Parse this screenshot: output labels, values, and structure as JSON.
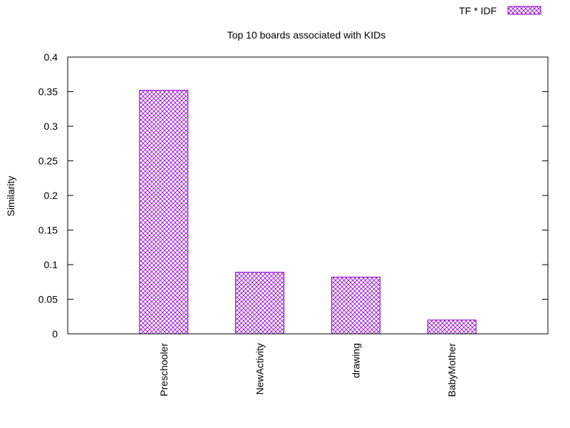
{
  "chart_data": {
    "type": "bar",
    "title": "Top 10 boards associated with KIDs",
    "xlabel": "",
    "ylabel": "Similarity",
    "categories": [
      "Preschooler",
      "NewActivity",
      "drawing",
      "BabyMother"
    ],
    "series": [
      {
        "name": "TF * IDF",
        "values": [
          0.352,
          0.089,
          0.082,
          0.02
        ]
      }
    ],
    "ylim": [
      0,
      0.4
    ],
    "yticks": [
      "0",
      "0.05",
      "0.1",
      "0.15",
      "0.2",
      "0.25",
      "0.3",
      "0.35",
      "0.4"
    ],
    "grid": false,
    "legend_position": "top-right",
    "bar_color": "#9400d3",
    "bar_fill": "crosshatch"
  }
}
